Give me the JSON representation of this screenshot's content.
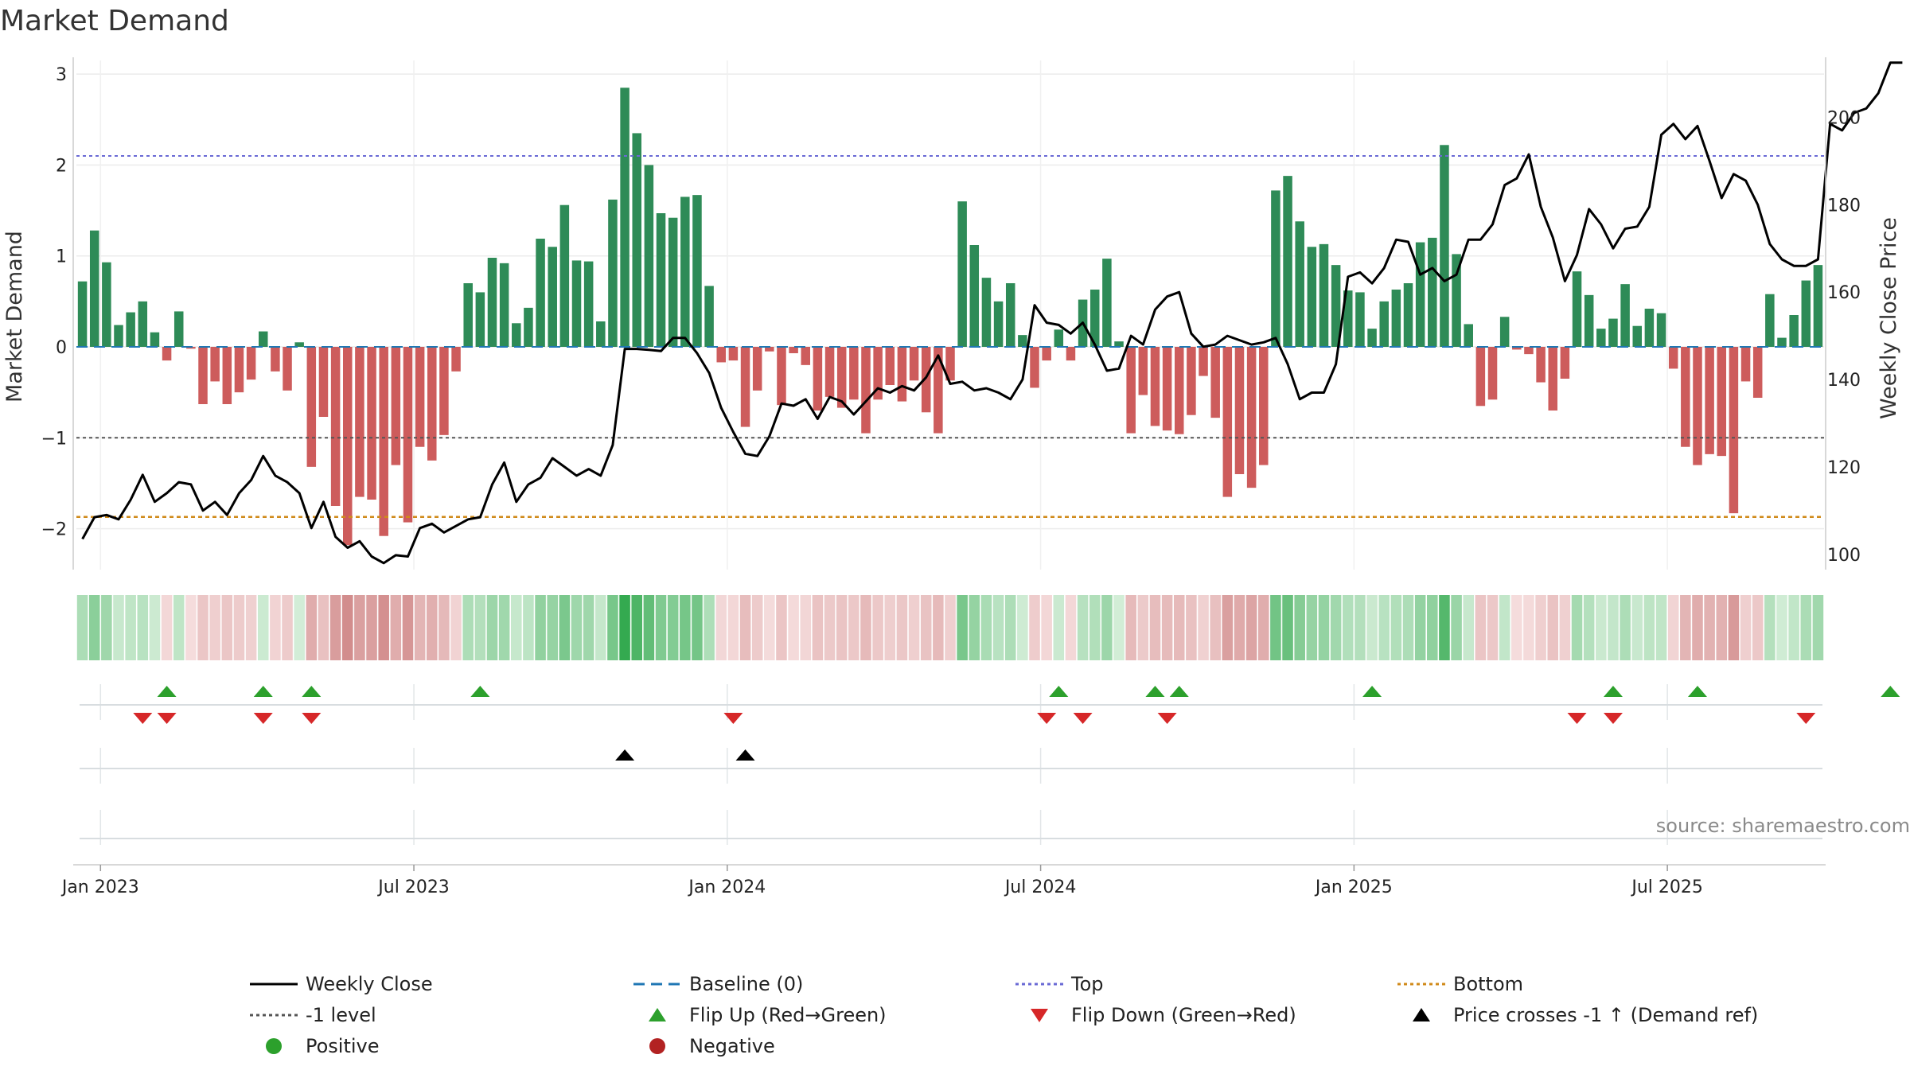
{
  "chart_data": {
    "type": "bar+line",
    "title": "Market Demand",
    "ylabel_left": "Market Demand",
    "ylabel_right": "Weekly Close Price",
    "source": "source: sharemaestro.com",
    "ylim_left": [
      -2.45,
      3.15
    ],
    "ylim_right": [
      96.5,
      213
    ],
    "left_ticks": [
      {
        "value": 3,
        "label": "3"
      },
      {
        "value": 2,
        "label": "2"
      },
      {
        "value": 1,
        "label": "1"
      },
      {
        "value": 0,
        "label": "0"
      },
      {
        "value": -1,
        "label": "−1"
      },
      {
        "value": -2,
        "label": "−2"
      }
    ],
    "right_ticks": [
      {
        "value": 200,
        "label": "200"
      },
      {
        "value": 180,
        "label": "180"
      },
      {
        "value": 160,
        "label": "160"
      },
      {
        "value": 140,
        "label": "140"
      },
      {
        "value": 120,
        "label": "120"
      },
      {
        "value": 100,
        "label": "100"
      }
    ],
    "x_ticks": [
      {
        "week": 1.5,
        "label": "Jan 2023"
      },
      {
        "week": 27.5,
        "label": "Jul 2023"
      },
      {
        "week": 53.5,
        "label": "Jan 2024"
      },
      {
        "week": 79.5,
        "label": "Jul 2024"
      },
      {
        "week": 105.5,
        "label": "Jan 2025"
      },
      {
        "week": 131.5,
        "label": "Jul 2025"
      }
    ],
    "reference_lines": {
      "top": 2.1,
      "minus_one": -1,
      "bottom": -1.87,
      "baseline": 0
    },
    "demand": [
      0.72,
      1.28,
      0.93,
      0.24,
      0.38,
      0.5,
      0.16,
      -0.15,
      0.39,
      -0.02,
      -0.63,
      -0.38,
      -0.63,
      -0.5,
      -0.36,
      0.17,
      -0.27,
      -0.48,
      0.05,
      -1.32,
      -0.77,
      -1.75,
      -2.18,
      -1.65,
      -1.68,
      -2.08,
      -1.3,
      -1.93,
      -1.1,
      -1.25,
      -0.97,
      -0.27,
      0.7,
      0.6,
      0.98,
      0.92,
      0.26,
      0.43,
      1.19,
      1.1,
      1.56,
      0.95,
      0.94,
      0.28,
      1.62,
      2.85,
      2.35,
      2.0,
      1.47,
      1.42,
      1.65,
      1.67,
      0.67,
      -0.17,
      -0.15,
      -0.88,
      -0.48,
      -0.05,
      -0.64,
      -0.07,
      -0.2,
      -0.7,
      -0.55,
      -0.67,
      -0.58,
      -0.95,
      -0.58,
      -0.42,
      -0.6,
      -0.37,
      -0.72,
      -0.95,
      -0.37,
      1.6,
      1.12,
      0.76,
      0.5,
      0.7,
      0.13,
      -0.45,
      -0.15,
      0.19,
      -0.15,
      0.52,
      0.63,
      0.97,
      0.06,
      -0.95,
      -0.53,
      -0.87,
      -0.92,
      -0.96,
      -0.75,
      -0.32,
      -0.78,
      -1.65,
      -1.4,
      -1.55,
      -1.3,
      1.72,
      1.88,
      1.38,
      1.1,
      1.13,
      0.9,
      0.62,
      0.6,
      0.2,
      0.5,
      0.63,
      0.7,
      1.15,
      1.2,
      2.22,
      1.02,
      0.25,
      -0.65,
      -0.58,
      0.33,
      -0.03,
      -0.08,
      -0.39,
      -0.7,
      -0.35,
      0.83,
      0.57,
      0.2,
      0.31,
      0.69,
      0.23,
      0.42,
      0.37,
      -0.24,
      -1.1,
      -1.3,
      -1.18,
      -1.2,
      -1.83,
      -0.38,
      -0.56,
      0.58,
      0.1,
      0.35,
      0.73,
      0.9
    ],
    "close": [
      103.5,
      108.5,
      109,
      108,
      112.5,
      118.2,
      112,
      114,
      116.5,
      116,
      110,
      112,
      109,
      114,
      117,
      122.5,
      118,
      116.5,
      114,
      106,
      112,
      104,
      101.5,
      103,
      99.5,
      98,
      99.8,
      99.5,
      106,
      107,
      105,
      106.5,
      108,
      108.5,
      116,
      121,
      112,
      116,
      117.5,
      122,
      120,
      118,
      119.5,
      118,
      125,
      147,
      147,
      146.8,
      146.5,
      149.5,
      149.5,
      146,
      141.5,
      133.5,
      128,
      123,
      122.5,
      127,
      134.5,
      134,
      135.5,
      131,
      136,
      135,
      132,
      135,
      138,
      137,
      138.5,
      137.5,
      140.5,
      145.5,
      139,
      139.5,
      137.5,
      138,
      137,
      135.5,
      140,
      157,
      153,
      152.5,
      150.5,
      153,
      148,
      142,
      142.5,
      150,
      148,
      156,
      159,
      160,
      150.5,
      147.5,
      148,
      150,
      149,
      148,
      148.5,
      149.5,
      143.5,
      135.5,
      137,
      137,
      143.5,
      163.5,
      164.5,
      162,
      165.5,
      172,
      171.5,
      164,
      165.5,
      162.5,
      164,
      172,
      172,
      175.5,
      184.5,
      186,
      191.5,
      179.5,
      172.5,
      162.5,
      168.5,
      179,
      175.5,
      170,
      174.5,
      175,
      179.5,
      196,
      198.5,
      195,
      198,
      190,
      181.5,
      187,
      185.5,
      180,
      171,
      167.5,
      166,
      166,
      167.5,
      198.5,
      197,
      201,
      202,
      205.5,
      212.5,
      212.5
    ],
    "flip_up_weeks": [
      7,
      15,
      19,
      33,
      81,
      89,
      91,
      107,
      127,
      134,
      150
    ],
    "flip_down_weeks": [
      5,
      7,
      15,
      19,
      54,
      80,
      83,
      90,
      124,
      127,
      143
    ],
    "price_cross_weeks": [
      45,
      55
    ],
    "legend": [
      {
        "label": "Weekly Close",
        "symbol": "line-solid",
        "color": "#000000"
      },
      {
        "label": "Baseline (0)",
        "symbol": "line-dashed",
        "color": "#1f77b4"
      },
      {
        "label": "Top",
        "symbol": "line-dotted",
        "color": "#6a6ad5"
      },
      {
        "label": "Bottom",
        "symbol": "line-dotted",
        "color": "#d08a1a"
      },
      {
        "label": "-1 level",
        "symbol": "line-dotted",
        "color": "#555555"
      },
      {
        "label": "Flip Up (Red→Green)",
        "symbol": "triangle-up",
        "color": "#2ca02c"
      },
      {
        "label": "Flip Down (Green→Red)",
        "symbol": "triangle-down",
        "color": "#d62728"
      },
      {
        "label": "Price crosses -1 ↑ (Demand ref)",
        "symbol": "triangle-up",
        "color": "#000000"
      },
      {
        "label": "Positive",
        "symbol": "circle",
        "color": "#2ca02c"
      },
      {
        "label": "Negative",
        "symbol": "circle",
        "color": "#b22222"
      }
    ],
    "colors": {
      "positive_bar": "#2e8b57",
      "negative_bar": "#cd5c5c",
      "close_line": "#000000",
      "flip_up": "#2ca02c",
      "flip_down": "#d62728",
      "price_cross": "#000000"
    }
  }
}
